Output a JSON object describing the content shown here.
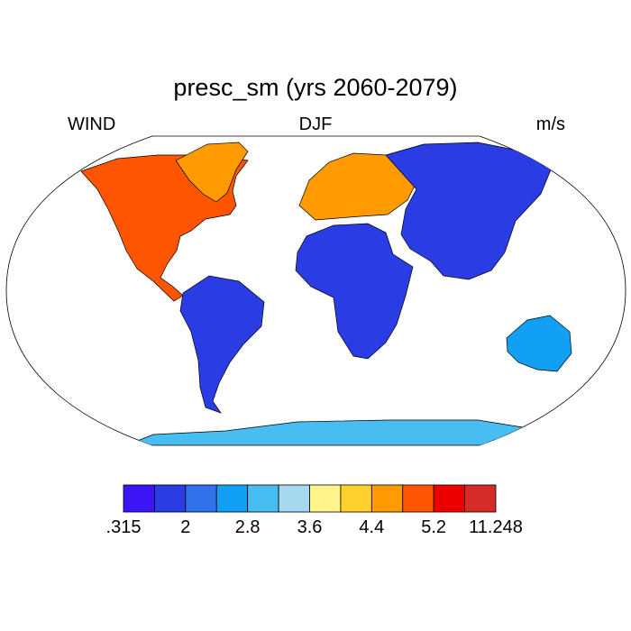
{
  "title": "presc_sm (yrs 2060-2079)",
  "left_label": "WIND",
  "center_label": "DJF",
  "right_label": "m/s",
  "map": {
    "projection": "Robinson",
    "ocean_color": "#ffffff",
    "regions": [
      {
        "name": "north-america",
        "level": 9
      },
      {
        "name": "greenland",
        "level": 8
      },
      {
        "name": "south-america",
        "level": 1
      },
      {
        "name": "europe",
        "level": 8
      },
      {
        "name": "asia",
        "level": 1
      },
      {
        "name": "africa",
        "level": 1
      },
      {
        "name": "australia",
        "level": 3
      },
      {
        "name": "antarctica",
        "level": 4
      }
    ]
  },
  "colorbar": {
    "colors": [
      "#3c14f5",
      "#2a3ce4",
      "#2f72eb",
      "#12a0f5",
      "#48bdf2",
      "#a6d8ef",
      "#fff38a",
      "#ffd02e",
      "#ff9a00",
      "#ff5500",
      "#ee0000",
      "#d52b2b"
    ],
    "labels": [
      ".315",
      "2",
      "2.8",
      "3.6",
      "4.4",
      "5.2",
      "11.248"
    ]
  }
}
